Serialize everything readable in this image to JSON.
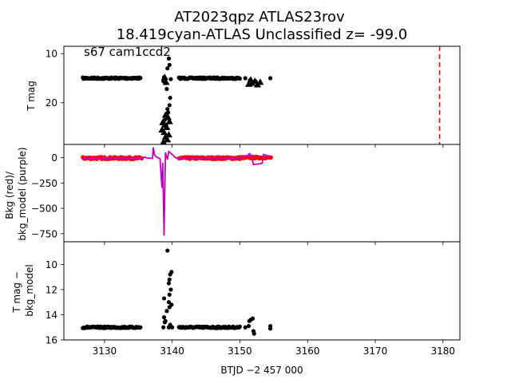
{
  "chart_data": [
    {
      "type": "scatter",
      "title_line1": "AT2023qpz  ATLAS23rov",
      "title_line2": "18.419cyan-ATLAS Unclassified z= -99.0",
      "annotation": "s67 cam1ccd2",
      "ylabel": "T mag",
      "xlim": [
        3124.0,
        3182.5
      ],
      "ylim": [
        8.5,
        28.5
      ],
      "y_inverted": true,
      "yticks": [
        10,
        20
      ],
      "vline": {
        "x": 3179.5,
        "color": "#ff0000",
        "style": "dashed"
      },
      "series": [
        {
          "marker": "circle",
          "color": "#000000",
          "segments": [
            {
              "x0": 3126.8,
              "x1": 3135.3,
              "y": 15.0,
              "spread": 0.15
            },
            {
              "x0": 3141.0,
              "x1": 3150.0,
              "y": 15.0,
              "spread": 0.15
            }
          ],
          "points": [
            [
              3139.5,
              11.0
            ],
            [
              3139.6,
              12.3
            ],
            [
              3139.3,
              13.0
            ],
            [
              3138.8,
              14.8
            ],
            [
              3139.0,
              16.0
            ],
            [
              3139.2,
              17.2
            ],
            [
              3139.6,
              20.5
            ],
            [
              3139.4,
              22.0
            ],
            [
              3138.9,
              23.5
            ],
            [
              3139.1,
              24.5
            ],
            [
              3139.7,
              19.0
            ],
            [
              3139.3,
              21.3
            ],
            [
              3138.7,
              15.6
            ],
            [
              3139.8,
              15.2
            ],
            [
              3150.8,
              15.0
            ],
            [
              3151.5,
              15.4
            ],
            [
              3152.3,
              15.6
            ],
            [
              3154.5,
              15.0
            ]
          ]
        },
        {
          "marker": "triangle",
          "color": "#000000",
          "points": [
            [
              3138.5,
              25.5
            ],
            [
              3138.8,
              26.0
            ],
            [
              3139.0,
              27.0
            ],
            [
              3139.3,
              27.5
            ],
            [
              3138.7,
              28.0
            ],
            [
              3139.5,
              26.5
            ],
            [
              3139.2,
              25.0
            ],
            [
              3138.9,
              24.5
            ],
            [
              3139.6,
              23.8
            ],
            [
              3138.6,
              24.0
            ],
            [
              3139.0,
              22.5
            ],
            [
              3139.4,
              23.0
            ],
            [
              3151.3,
              16.2
            ],
            [
              3151.8,
              16.0
            ],
            [
              3152.2,
              15.6
            ],
            [
              3152.6,
              16.3
            ],
            [
              3153.0,
              15.8
            ],
            [
              3151.6,
              15.3
            ],
            [
              3138.9,
              14.8
            ],
            [
              3139.1,
              15.8
            ]
          ]
        }
      ]
    },
    {
      "type": "line",
      "ylabel": "Bkg (red)/\nbkg_model (purple)",
      "xlim": [
        3124.0,
        3182.5
      ],
      "ylim": [
        -830,
        130
      ],
      "yticks": [
        0,
        -250,
        -500,
        -750
      ],
      "series": [
        {
          "name": "Bkg",
          "color": "#ff0000",
          "style": "points",
          "segments": [
            {
              "x0": 3126.8,
              "x1": 3135.5,
              "y": -5,
              "spread": 10
            },
            {
              "x0": 3141.0,
              "x1": 3150.0,
              "y": -5,
              "spread": 10
            },
            {
              "x0": 3150.0,
              "x1": 3154.6,
              "y": 0,
              "spread": 8
            }
          ]
        },
        {
          "name": "bkg_model",
          "color": "#bf00bf",
          "style": "line",
          "points": [
            [
              3126.8,
              -2
            ],
            [
              3135.3,
              -2
            ],
            [
              3136.0,
              5
            ],
            [
              3136.2,
              -3
            ],
            [
              3137.1,
              -8
            ],
            [
              3137.2,
              100
            ],
            [
              3137.4,
              25
            ],
            [
              3137.7,
              5
            ],
            [
              3138.2,
              -10
            ],
            [
              3138.5,
              -300
            ],
            [
              3138.6,
              -50
            ],
            [
              3138.8,
              -770
            ],
            [
              3139.0,
              50
            ],
            [
              3139.3,
              -20
            ],
            [
              3139.5,
              60
            ],
            [
              3140.0,
              30
            ],
            [
              3140.6,
              -5
            ],
            [
              3141.2,
              -2
            ],
            [
              3150.0,
              -2
            ],
            [
              3150.5,
              5
            ],
            [
              3151.0,
              10
            ],
            [
              3151.4,
              40
            ],
            [
              3151.7,
              20
            ],
            [
              3152.0,
              -70
            ],
            [
              3153.0,
              -60
            ],
            [
              3153.3,
              -55
            ],
            [
              3153.5,
              30
            ],
            [
              3154.0,
              20
            ],
            [
              3154.3,
              15
            ],
            [
              3154.6,
              10
            ]
          ]
        }
      ]
    },
    {
      "type": "scatter",
      "ylabel": "T mag −\nbkg_model",
      "xlabel": "BTJD −2 457 000",
      "xlim": [
        3124.0,
        3182.5
      ],
      "xticks": [
        3130,
        3140,
        3150,
        3160,
        3170,
        3180
      ],
      "ylim": [
        8.2,
        16.0
      ],
      "y_inverted": true,
      "yticks": [
        10,
        12,
        14,
        16
      ],
      "series": [
        {
          "marker": "circle",
          "color": "#000000",
          "segments": [
            {
              "x0": 3126.8,
              "x1": 3135.3,
              "y": 15.0,
              "spread": 0.06
            },
            {
              "x0": 3141.0,
              "x1": 3150.0,
              "y": 15.0,
              "spread": 0.06
            }
          ],
          "points": [
            [
              3139.3,
              8.9
            ],
            [
              3139.9,
              10.6
            ],
            [
              3139.7,
              10.8
            ],
            [
              3139.6,
              11.2
            ],
            [
              3139.5,
              11.5
            ],
            [
              3139.8,
              12.0
            ],
            [
              3139.6,
              12.4
            ],
            [
              3138.8,
              12.7
            ],
            [
              3139.5,
              13.0
            ],
            [
              3139.9,
              13.2
            ],
            [
              3139.6,
              13.4
            ],
            [
              3138.8,
              14.2
            ],
            [
              3139.0,
              14.5
            ],
            [
              3138.9,
              14.6
            ],
            [
              3139.2,
              13.7
            ],
            [
              3139.7,
              14.8
            ],
            [
              3138.7,
              15.0
            ],
            [
              3139.5,
              15.0
            ],
            [
              3140.0,
              15.0
            ],
            [
              3150.8,
              15.0
            ],
            [
              3151.4,
              14.5
            ],
            [
              3151.6,
              14.4
            ],
            [
              3151.9,
              14.3
            ],
            [
              3151.3,
              14.9
            ],
            [
              3152.0,
              15.3
            ],
            [
              3152.1,
              15.5
            ],
            [
              3154.5,
              14.9
            ],
            [
              3154.5,
              15.1
            ]
          ]
        }
      ]
    }
  ]
}
